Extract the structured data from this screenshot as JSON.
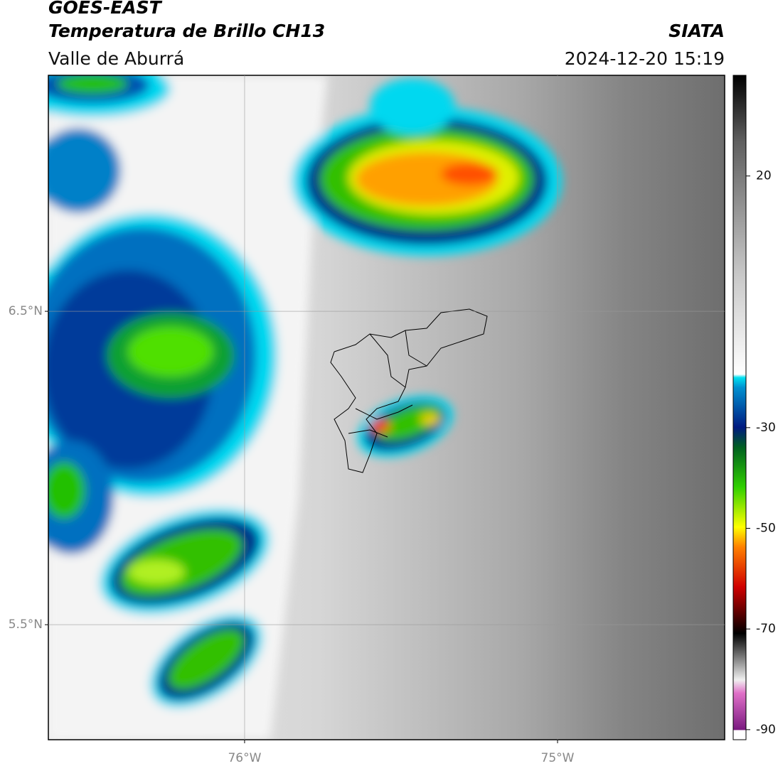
{
  "header": {
    "title": "GOES-EAST",
    "subtitle": "Temperatura de Brillo CH13",
    "region": "Valle de Aburrá",
    "agency": "SIATA",
    "timestamp": "2024-12-20 15:19"
  },
  "map": {
    "lon_range": [
      -76.627,
      -74.466
    ],
    "lat_range": [
      5.133,
      7.253
    ],
    "lon_ticks": [
      {
        "value": -76,
        "label": "76°W"
      },
      {
        "value": -75,
        "label": "75°W"
      }
    ],
    "lat_ticks": [
      {
        "value": 6.5,
        "label": "6.5°N"
      },
      {
        "value": 5.5,
        "label": "5.5°N"
      }
    ]
  },
  "colorbar": {
    "range": [
      -92,
      40
    ],
    "ticks": [
      20,
      -30,
      -50,
      -70,
      -90
    ]
  }
}
